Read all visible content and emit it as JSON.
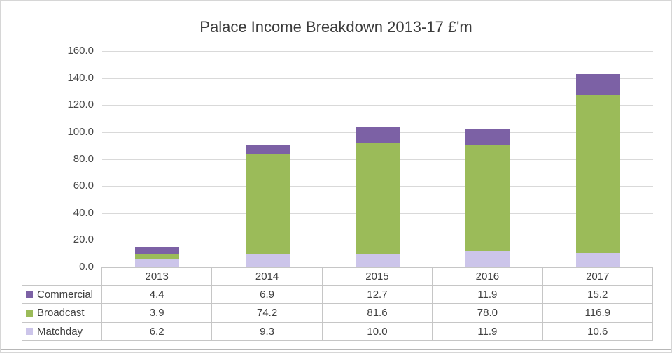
{
  "chart_data": {
    "type": "bar",
    "stacked": true,
    "title": "Palace Income Breakdown 2013-17 £'m",
    "categories": [
      "2013",
      "2014",
      "2015",
      "2016",
      "2017"
    ],
    "series": [
      {
        "name": "Commercial",
        "color": "#7c61a5",
        "values": [
          4.4,
          6.9,
          12.7,
          11.9,
          15.2
        ]
      },
      {
        "name": "Broadcast",
        "color": "#9bbb59",
        "values": [
          3.9,
          74.2,
          81.6,
          78.0,
          116.9
        ]
      },
      {
        "name": "Matchday",
        "color": "#ccc5ea",
        "values": [
          6.2,
          9.3,
          10.0,
          11.9,
          10.6
        ]
      }
    ],
    "stack_order_bottom_to_top": [
      "Matchday",
      "Broadcast",
      "Commercial"
    ],
    "ylim": [
      0,
      160
    ],
    "ytick_step": 20,
    "ytick_format_decimals": 1,
    "grid": true,
    "legend_position": "data-table-left",
    "data_table": true
  },
  "style": {
    "gridline_color": "#d9d9d9",
    "table_border_color": "#c6c6c6",
    "text_color": "#3f3f3f"
  }
}
